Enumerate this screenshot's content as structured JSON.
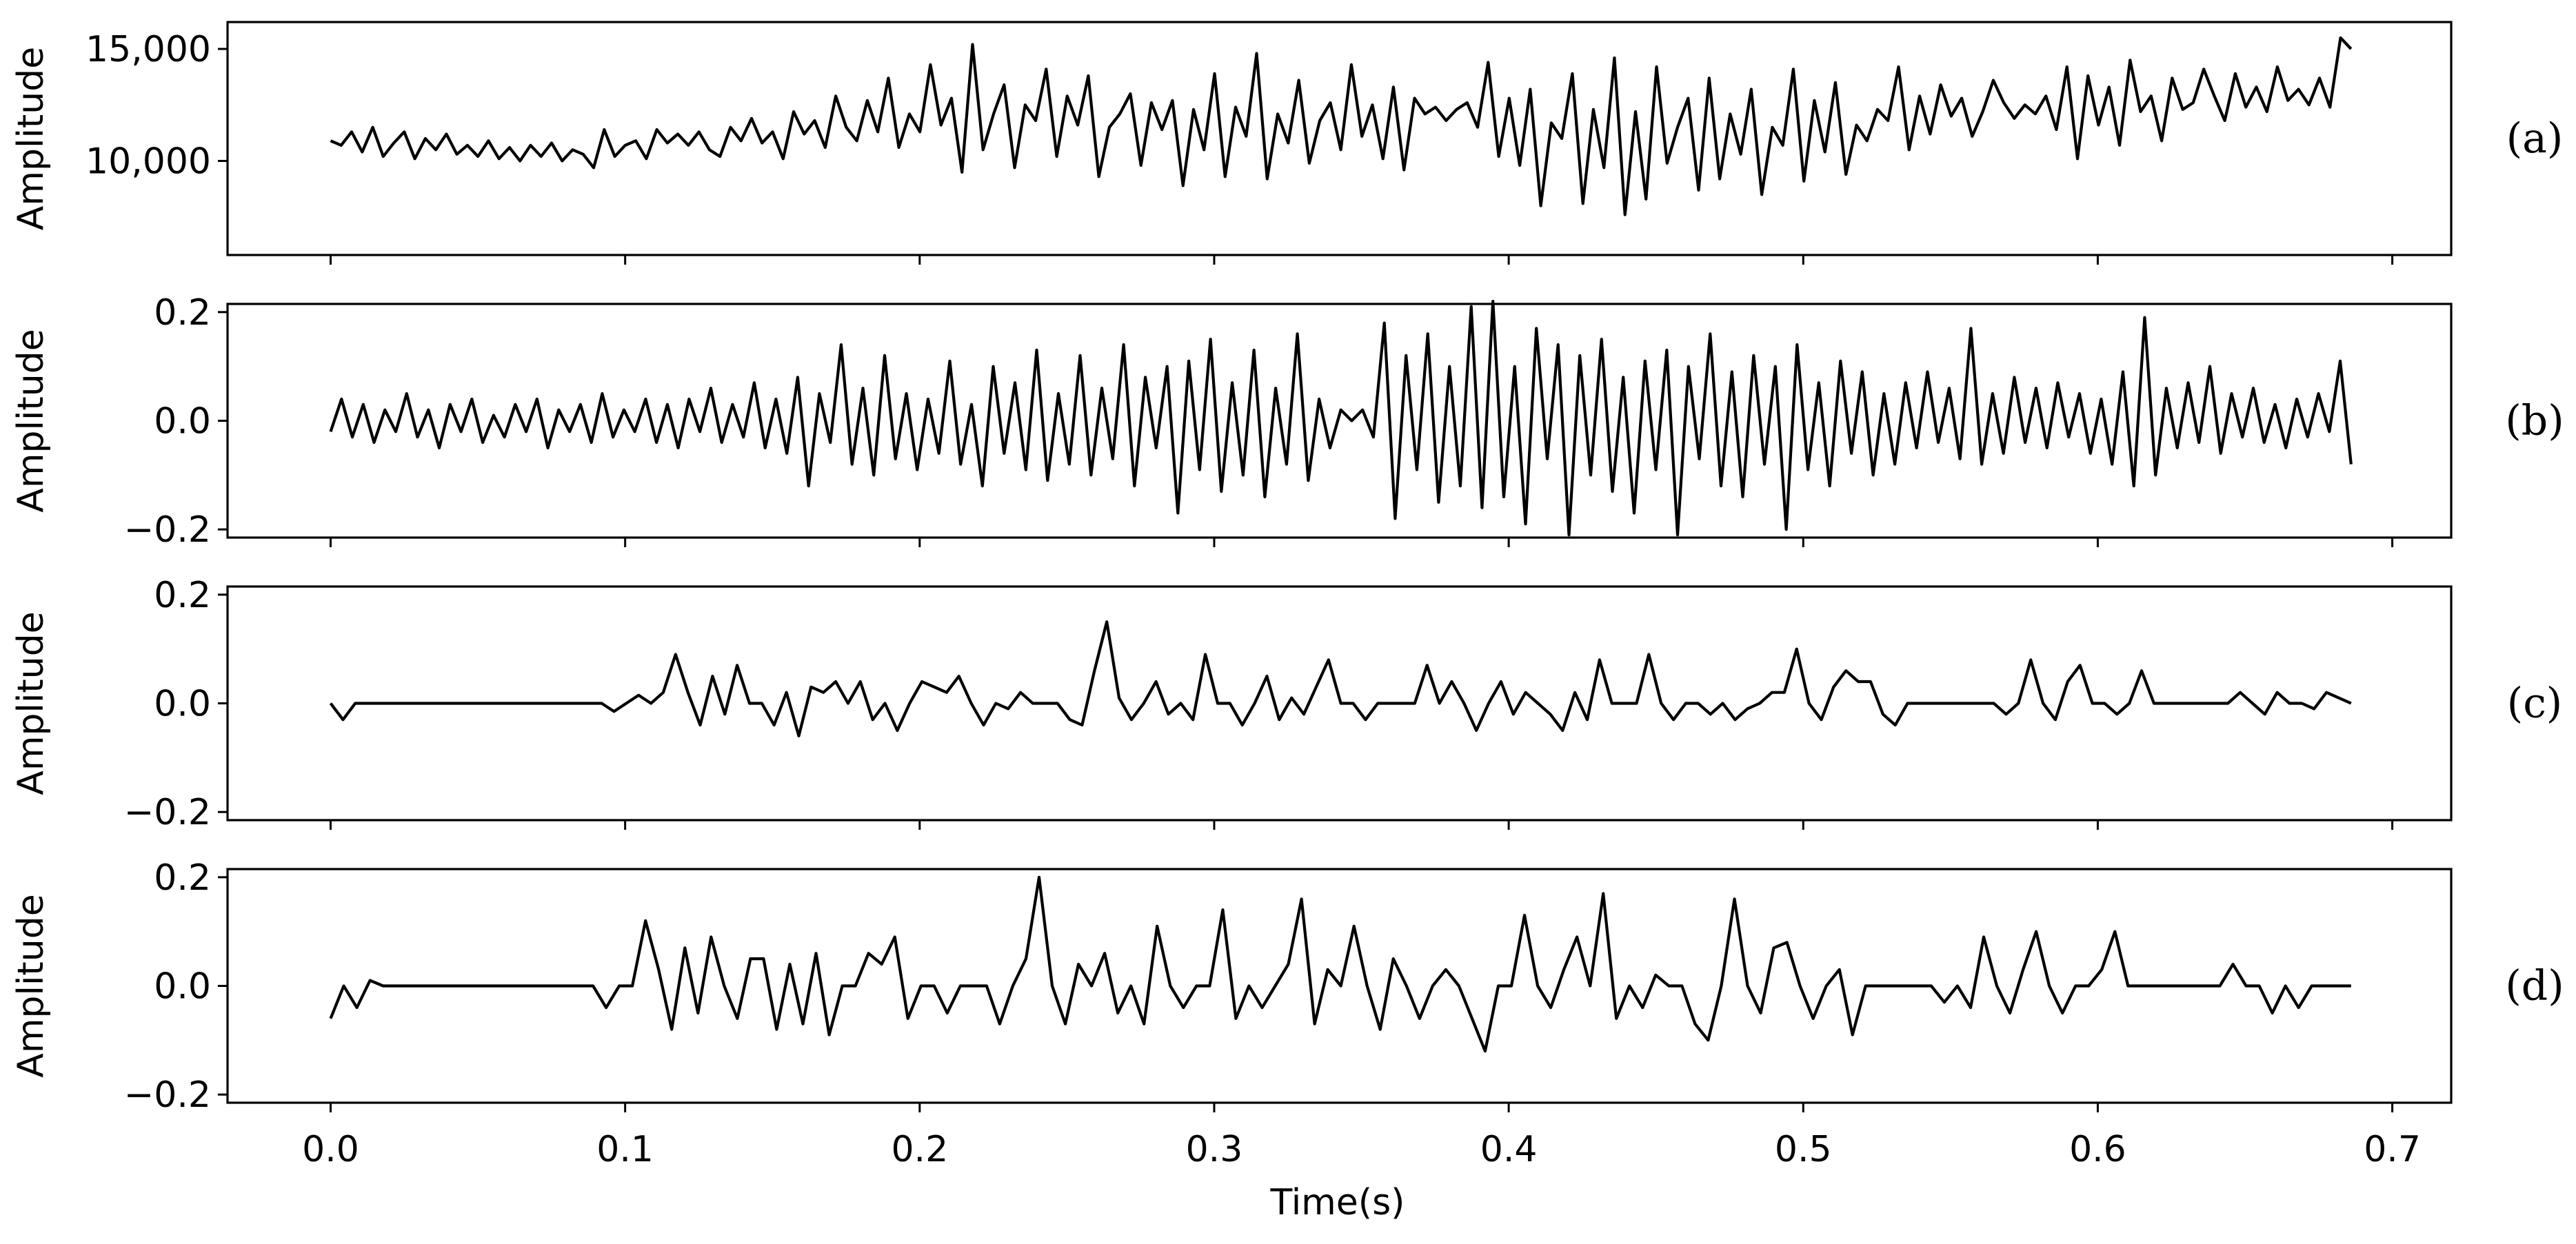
{
  "chart_data": {
    "type": "line",
    "xlabel": "Time(s)",
    "xlim": [
      -0.035,
      0.72
    ],
    "x_ticks": [
      0.0,
      0.1,
      0.2,
      0.3,
      0.4,
      0.5,
      0.6,
      0.7
    ],
    "x_tick_labels": [
      "0.0",
      "0.1",
      "0.2",
      "0.3",
      "0.4",
      "0.5",
      "0.6",
      "0.7"
    ],
    "duration": 0.686,
    "line_color": "#000000",
    "panels": [
      {
        "label": "(a)",
        "ylabel": "Amplitude",
        "ylim": [
          5800,
          16200
        ],
        "y_ticks": [
          10000,
          15000
        ],
        "y_tick_labels": [
          "10,000",
          "15,000"
        ],
        "series": [
          {
            "values": [
              10900,
              10700,
              11300,
              10400,
              11500,
              10200,
              10800,
              11300,
              10100,
              11000,
              10500,
              11200,
              10300,
              10700,
              10200,
              10900,
              10100,
              10600,
              10000,
              10700,
              10200,
              10800,
              10000,
              10500,
              10300,
              9700,
              11400,
              10200,
              10700,
              10900,
              10100,
              11400,
              10800,
              11200,
              10700,
              11300,
              10500,
              10200,
              11500,
              10900,
              11900,
              10800,
              11300,
              10100,
              12200,
              11200,
              11800,
              10600,
              12900,
              11500,
              10900,
              12700,
              11300,
              13700,
              10600,
              12100,
              11300,
              14300,
              11600,
              12800,
              9500,
              15200,
              10500,
              12100,
              13400,
              9700,
              12500,
              11800,
              14100,
              10200,
              12900,
              11600,
              13800,
              9300,
              11500,
              12100,
              13000,
              9800,
              12600,
              11400,
              12700,
              8900,
              12300,
              10500,
              13900,
              9300,
              12400,
              11100,
              14800,
              9200,
              12100,
              10800,
              13600,
              9900,
              11800,
              12600,
              10500,
              14300,
              11100,
              12500,
              10100,
              13300,
              9600,
              12800,
              12100,
              12400,
              11800,
              12300,
              12600,
              11500,
              14400,
              10200,
              12800,
              9800,
              13200,
              8000,
              11700,
              11000,
              13900,
              8100,
              12300,
              9700,
              14600,
              7600,
              12200,
              8300,
              14200,
              9900,
              11500,
              12800,
              8700,
              13700,
              9200,
              12100,
              10300,
              13200,
              8500,
              11500,
              10700,
              14100,
              9100,
              12700,
              10400,
              13500,
              9400,
              11600,
              10900,
              12300,
              11800,
              14200,
              10500,
              12900,
              11200,
              13400,
              12000,
              12800,
              11100,
              12200,
              13600,
              12600,
              11900,
              12500,
              12100,
              12900,
              11400,
              14200,
              10100,
              13800,
              11600,
              13300,
              10700,
              14500,
              12200,
              12900,
              10900,
              13700,
              12300,
              12600,
              14100,
              12900,
              11800,
              13900,
              12400,
              13300,
              12200,
              14200,
              12700,
              13200,
              12500,
              13700,
              12400,
              15500,
              15000
            ]
          }
        ]
      },
      {
        "label": "(b)",
        "ylabel": "Amplitude",
        "ylim": [
          -0.215,
          0.215
        ],
        "y_ticks": [
          -0.2,
          0.0,
          0.2
        ],
        "y_tick_labels": [
          "−0.2",
          "0.0",
          "0.2"
        ],
        "series": [
          {
            "values": [
              -0.02,
              0.04,
              -0.03,
              0.03,
              -0.04,
              0.02,
              -0.02,
              0.05,
              -0.03,
              0.02,
              -0.05,
              0.03,
              -0.02,
              0.04,
              -0.04,
              0.01,
              -0.03,
              0.03,
              -0.02,
              0.04,
              -0.05,
              0.02,
              -0.02,
              0.03,
              -0.04,
              0.05,
              -0.03,
              0.02,
              -0.02,
              0.04,
              -0.04,
              0.03,
              -0.05,
              0.04,
              -0.02,
              0.06,
              -0.04,
              0.03,
              -0.03,
              0.07,
              -0.05,
              0.04,
              -0.06,
              0.08,
              -0.12,
              0.05,
              -0.04,
              0.14,
              -0.08,
              0.06,
              -0.1,
              0.12,
              -0.07,
              0.05,
              -0.09,
              0.04,
              -0.06,
              0.11,
              -0.08,
              0.03,
              -0.12,
              0.1,
              -0.06,
              0.07,
              -0.09,
              0.13,
              -0.11,
              0.05,
              -0.08,
              0.12,
              -0.1,
              0.06,
              -0.07,
              0.14,
              -0.12,
              0.08,
              -0.05,
              0.1,
              -0.17,
              0.11,
              -0.09,
              0.15,
              -0.13,
              0.07,
              -0.1,
              0.13,
              -0.14,
              0.06,
              -0.08,
              0.16,
              -0.11,
              0.04,
              -0.05,
              0.02,
              0.0,
              0.02,
              -0.03,
              0.18,
              -0.18,
              0.12,
              -0.09,
              0.16,
              -0.15,
              0.1,
              -0.12,
              0.21,
              -0.16,
              0.22,
              -0.14,
              0.1,
              -0.19,
              0.17,
              -0.07,
              0.14,
              -0.21,
              0.12,
              -0.1,
              0.15,
              -0.13,
              0.08,
              -0.17,
              0.11,
              -0.09,
              0.13,
              -0.21,
              0.1,
              -0.07,
              0.16,
              -0.12,
              0.09,
              -0.14,
              0.12,
              -0.08,
              0.1,
              -0.2,
              0.14,
              -0.09,
              0.07,
              -0.12,
              0.11,
              -0.06,
              0.09,
              -0.1,
              0.05,
              -0.08,
              0.07,
              -0.05,
              0.09,
              -0.04,
              0.06,
              -0.07,
              0.17,
              -0.08,
              0.05,
              -0.06,
              0.08,
              -0.04,
              0.06,
              -0.05,
              0.07,
              -0.03,
              0.05,
              -0.06,
              0.04,
              -0.08,
              0.09,
              -0.12,
              0.19,
              -0.1,
              0.06,
              -0.05,
              0.07,
              -0.04,
              0.1,
              -0.06,
              0.05,
              -0.03,
              0.06,
              -0.04,
              0.03,
              -0.05,
              0.04,
              -0.03,
              0.05,
              -0.02,
              0.11,
              -0.08
            ]
          }
        ]
      },
      {
        "label": "(c)",
        "ylabel": "Amplitude",
        "ylim": [
          -0.215,
          0.215
        ],
        "y_ticks": [
          -0.2,
          0.0,
          0.2
        ],
        "y_tick_labels": [
          "−0.2",
          "0.0",
          "0.2"
        ],
        "series": [
          {
            "values": [
              0,
              -0.03,
              0,
              0,
              0,
              0,
              0,
              0,
              0,
              0,
              0,
              0,
              0,
              0,
              0,
              0,
              0,
              0,
              0,
              0,
              0,
              0,
              0,
              -0.015,
              0,
              0.015,
              0,
              0.02,
              0.09,
              0.02,
              -0.04,
              0.05,
              -0.02,
              0.07,
              0,
              0,
              -0.04,
              0.02,
              -0.06,
              0.03,
              0.02,
              0.04,
              0,
              0.04,
              -0.03,
              0,
              -0.05,
              0,
              0.04,
              0.03,
              0.02,
              0.05,
              0,
              -0.04,
              0,
              -0.01,
              0.02,
              0,
              0,
              0,
              -0.03,
              -0.04,
              0.06,
              0.15,
              0.01,
              -0.03,
              0,
              0.04,
              -0.02,
              0,
              -0.03,
              0.09,
              0,
              0,
              -0.04,
              0,
              0.05,
              -0.03,
              0.01,
              -0.02,
              0.03,
              0.08,
              0,
              0,
              -0.03,
              0,
              0,
              0,
              0,
              0.07,
              0,
              0.04,
              0,
              -0.05,
              0,
              0.04,
              -0.02,
              0.02,
              0,
              -0.02,
              -0.05,
              0.02,
              -0.03,
              0.08,
              0,
              0,
              0,
              0.09,
              0,
              -0.03,
              0,
              0,
              -0.02,
              0,
              -0.03,
              -0.01,
              0,
              0.02,
              0.02,
              0.1,
              0,
              -0.03,
              0.03,
              0.06,
              0.04,
              0.04,
              -0.02,
              -0.04,
              0,
              0,
              0,
              0,
              0,
              0,
              0,
              0,
              -0.02,
              0,
              0.08,
              0,
              -0.03,
              0.04,
              0.07,
              0,
              0,
              -0.02,
              0,
              0.06,
              0,
              0,
              0,
              0,
              0,
              0,
              0,
              0.02,
              0,
              -0.02,
              0.02,
              0,
              0,
              -0.01,
              0.02,
              0.01,
              0
            ]
          }
        ]
      },
      {
        "label": "(d)",
        "ylabel": "Amplitude",
        "ylim": [
          -0.215,
          0.215
        ],
        "y_ticks": [
          -0.2,
          0.0,
          0.2
        ],
        "y_tick_labels": [
          "−0.2",
          "0.0",
          "0.2"
        ],
        "series": [
          {
            "values": [
              -0.06,
              0,
              -0.04,
              0.01,
              0,
              0,
              0,
              0,
              0,
              0,
              0,
              0,
              0,
              0,
              0,
              0,
              0,
              0,
              0,
              0,
              0,
              -0.04,
              0,
              0,
              0.12,
              0.03,
              -0.08,
              0.07,
              -0.05,
              0.09,
              0,
              -0.06,
              0.05,
              0.05,
              -0.08,
              0.04,
              -0.07,
              0.06,
              -0.09,
              0,
              0,
              0.06,
              0.04,
              0.09,
              -0.06,
              0,
              0,
              -0.05,
              0,
              0,
              0,
              -0.07,
              0,
              0.05,
              0.2,
              0,
              -0.07,
              0.04,
              0,
              0.06,
              -0.05,
              0,
              -0.07,
              0.11,
              0,
              -0.04,
              0,
              0,
              0.14,
              -0.06,
              0,
              -0.04,
              0,
              0.04,
              0.16,
              -0.07,
              0.03,
              0,
              0.11,
              0,
              -0.08,
              0.05,
              0,
              -0.06,
              0,
              0.03,
              0,
              -0.06,
              -0.12,
              0,
              0,
              0.13,
              0,
              -0.04,
              0.03,
              0.09,
              0,
              0.17,
              -0.06,
              0,
              -0.04,
              0.02,
              0,
              0,
              -0.07,
              -0.1,
              0,
              0.16,
              0,
              -0.05,
              0.07,
              0.08,
              0,
              -0.06,
              0,
              0.03,
              -0.09,
              0,
              0,
              0,
              0,
              0,
              0,
              -0.03,
              0,
              -0.04,
              0.09,
              0,
              -0.05,
              0.03,
              0.1,
              0,
              -0.05,
              0,
              0,
              0.03,
              0.1,
              0,
              0,
              0,
              0,
              0,
              0,
              0,
              0,
              0.04,
              0,
              0,
              -0.05,
              0,
              -0.04,
              0,
              0,
              0,
              0
            ]
          }
        ]
      }
    ]
  }
}
